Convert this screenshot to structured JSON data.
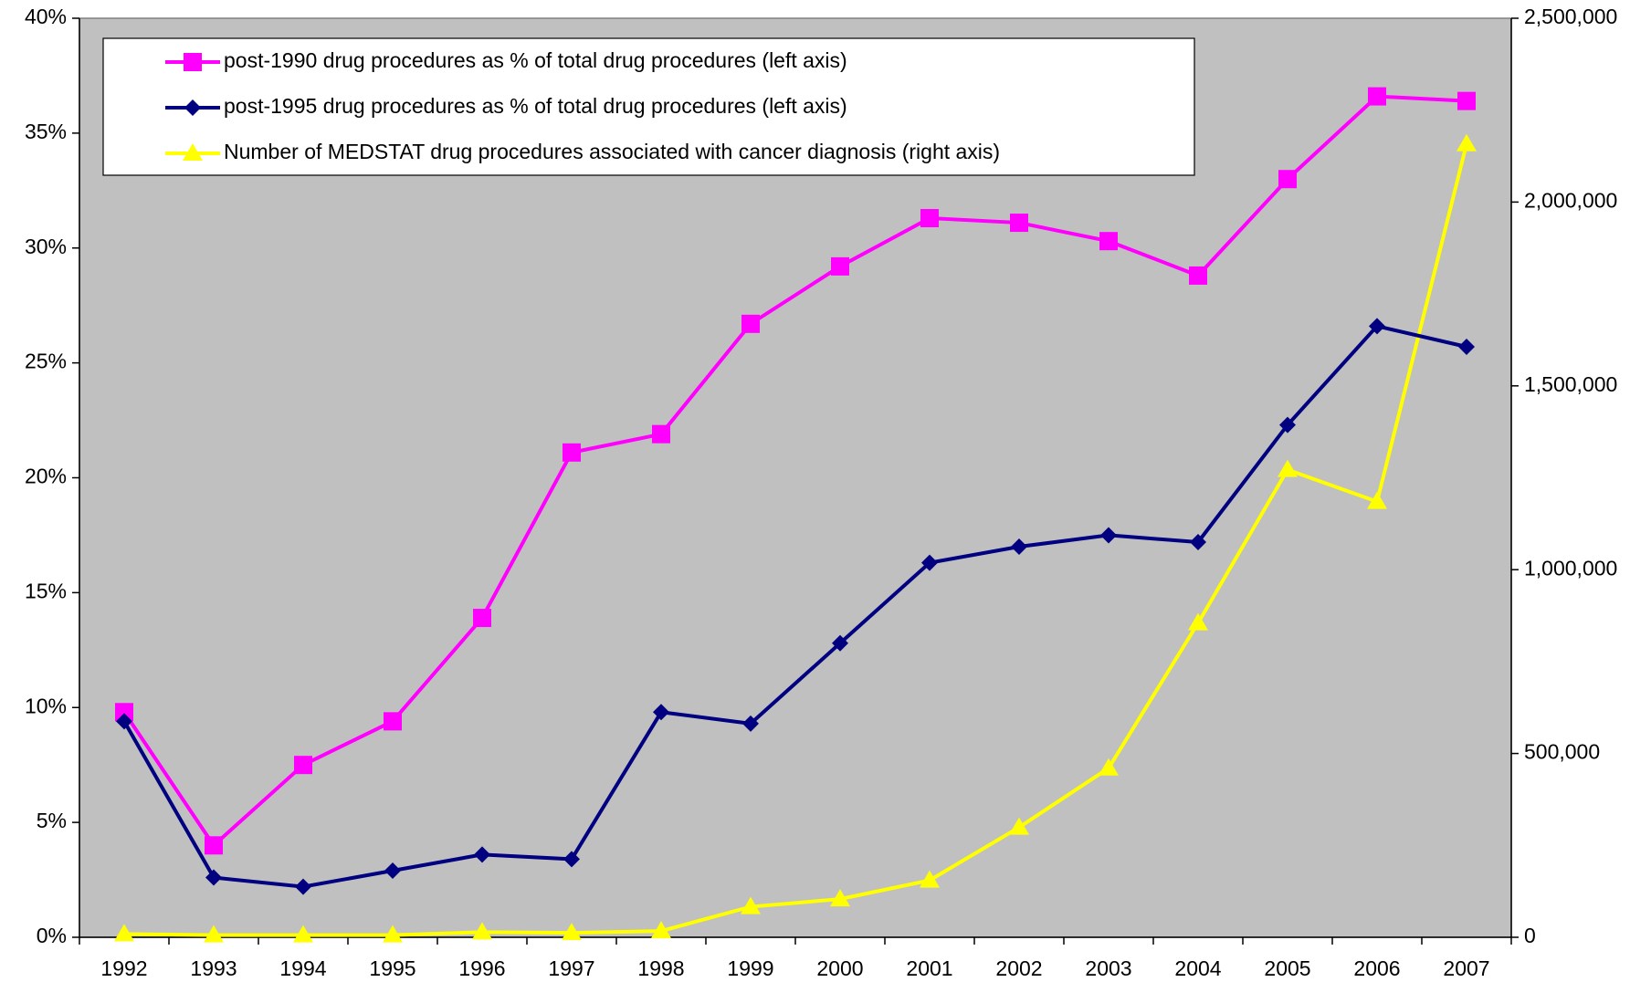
{
  "chart_data": {
    "type": "line",
    "categories": [
      "1992",
      "1993",
      "1994",
      "1995",
      "1996",
      "1997",
      "1998",
      "1999",
      "2000",
      "2001",
      "2002",
      "2003",
      "2004",
      "2005",
      "2006",
      "2007"
    ],
    "series": [
      {
        "name": "post-1990 drug procedures as % of total drug procedures (left axis)",
        "color": "#ff00ff",
        "marker": "square",
        "axis": "y",
        "values": [
          9.8,
          4.0,
          7.5,
          9.4,
          13.9,
          21.1,
          21.9,
          26.7,
          29.2,
          31.3,
          31.1,
          30.3,
          28.8,
          33.0,
          36.6,
          36.4
        ]
      },
      {
        "name": "post-1995 drug procedures as % of total drug procedures (left axis)",
        "color": "#000080",
        "marker": "diamond",
        "axis": "y",
        "values": [
          9.4,
          2.6,
          2.2,
          2.9,
          3.6,
          3.4,
          9.8,
          9.3,
          12.8,
          16.3,
          17.0,
          17.5,
          17.2,
          22.3,
          26.6,
          25.7
        ]
      },
      {
        "name": "Number of MEDSTAT drug procedures associated with cancer diagnosis (right axis)",
        "color": "#ffff00",
        "marker": "triangle",
        "axis": "y2",
        "values": [
          9000,
          6000,
          6000,
          6000,
          14000,
          12000,
          17000,
          83000,
          104000,
          155000,
          299000,
          460000,
          855000,
          1272000,
          1185000,
          2158000
        ]
      }
    ],
    "ylim": [
      0,
      40
    ],
    "yticks": [
      {
        "value": 0,
        "label": "0%"
      },
      {
        "value": 5,
        "label": "5%"
      },
      {
        "value": 10,
        "label": "10%"
      },
      {
        "value": 15,
        "label": "15%"
      },
      {
        "value": 20,
        "label": "20%"
      },
      {
        "value": 25,
        "label": "25%"
      },
      {
        "value": 30,
        "label": "30%"
      },
      {
        "value": 35,
        "label": "35%"
      },
      {
        "value": 40,
        "label": "40%"
      }
    ],
    "y2lim": [
      0,
      2500000
    ],
    "y2ticks": [
      0,
      {
        "value": 500000,
        "label": "500,000"
      },
      {
        "value": 1000000,
        "label": "1,000,000"
      },
      {
        "value": 1500000,
        "label": "1,500,000"
      },
      {
        "value": 2000000,
        "label": "2,000,000"
      },
      {
        "value": 2500000,
        "label": "2,500,000"
      }
    ],
    "plot_background": "#c0c0c0",
    "legend": "upper left"
  }
}
